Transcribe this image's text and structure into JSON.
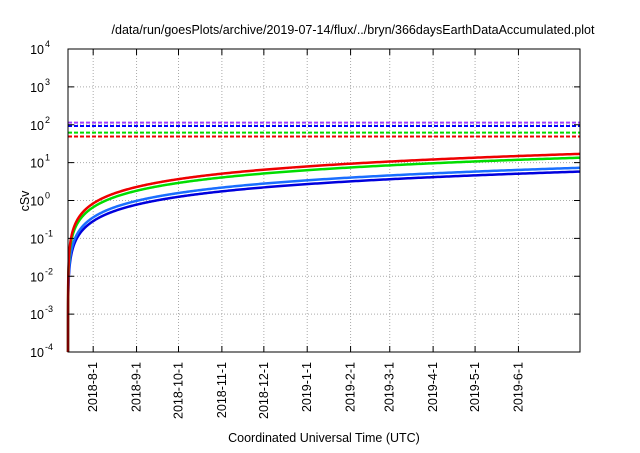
{
  "chart_data": {
    "type": "line",
    "title": "/data/run/goesPlots/archive/2019-07-14/flux/../bryn/366daysEarthDataAccumulated.plot",
    "xlabel": "Coordinated Universal Time (UTC)",
    "ylabel": "cSv",
    "yscale": "log",
    "ylim": [
      0.0001,
      10000
    ],
    "y_ticks": [
      {
        "value": 0.0001,
        "base": "10",
        "exp": "-4"
      },
      {
        "value": 0.001,
        "base": "10",
        "exp": "-3"
      },
      {
        "value": 0.01,
        "base": "10",
        "exp": "-2"
      },
      {
        "value": 0.1,
        "base": "10",
        "exp": "-1"
      },
      {
        "value": 1,
        "base": "10",
        "exp": "0"
      },
      {
        "value": 10,
        "base": "10",
        "exp": "1"
      },
      {
        "value": 100,
        "base": "10",
        "exp": "2"
      },
      {
        "value": 1000,
        "base": "10",
        "exp": "3"
      },
      {
        "value": 10000,
        "base": "10",
        "exp": "4"
      }
    ],
    "x_start": "2018-07-14",
    "x_range_days": [
      0,
      366
    ],
    "x_ticks": [
      {
        "label": "2018-8-1",
        "day": 18
      },
      {
        "label": "2018-9-1",
        "day": 49
      },
      {
        "label": "2018-10-1",
        "day": 79
      },
      {
        "label": "2018-11-1",
        "day": 110
      },
      {
        "label": "2018-12-1",
        "day": 140
      },
      {
        "label": "2019-1-1",
        "day": 171
      },
      {
        "label": "2019-2-1",
        "day": 202
      },
      {
        "label": "2019-3-1",
        "day": 230
      },
      {
        "label": "2019-4-1",
        "day": 261
      },
      {
        "label": "2019-5-1",
        "day": 291
      },
      {
        "label": "2019-6-1",
        "day": 322
      }
    ],
    "grid": true,
    "series": [
      {
        "name": "accumulated-red",
        "color": "#ee0000",
        "style": "solid",
        "start_day": 0,
        "end_day": 366,
        "end_value": 17
      },
      {
        "name": "accumulated-green",
        "color": "#00dd00",
        "style": "solid",
        "start_day": 0,
        "end_day": 366,
        "end_value": 13.5
      },
      {
        "name": "accumulated-lightblue",
        "color": "#1a6eff",
        "style": "solid",
        "start_day": 0,
        "end_day": 366,
        "end_value": 7.3
      },
      {
        "name": "accumulated-darkblue",
        "color": "#0000dd",
        "style": "solid",
        "start_day": 0,
        "end_day": 366,
        "end_value": 5.8
      }
    ],
    "thresholds": [
      {
        "name": "limit-purple",
        "color": "#a040ff",
        "value": 114
      },
      {
        "name": "limit-blue",
        "color": "#0000ff",
        "value": 93
      },
      {
        "name": "limit-green",
        "color": "#00dd00",
        "value": 62
      },
      {
        "name": "limit-red",
        "color": "#ee0000",
        "value": 49
      }
    ]
  }
}
